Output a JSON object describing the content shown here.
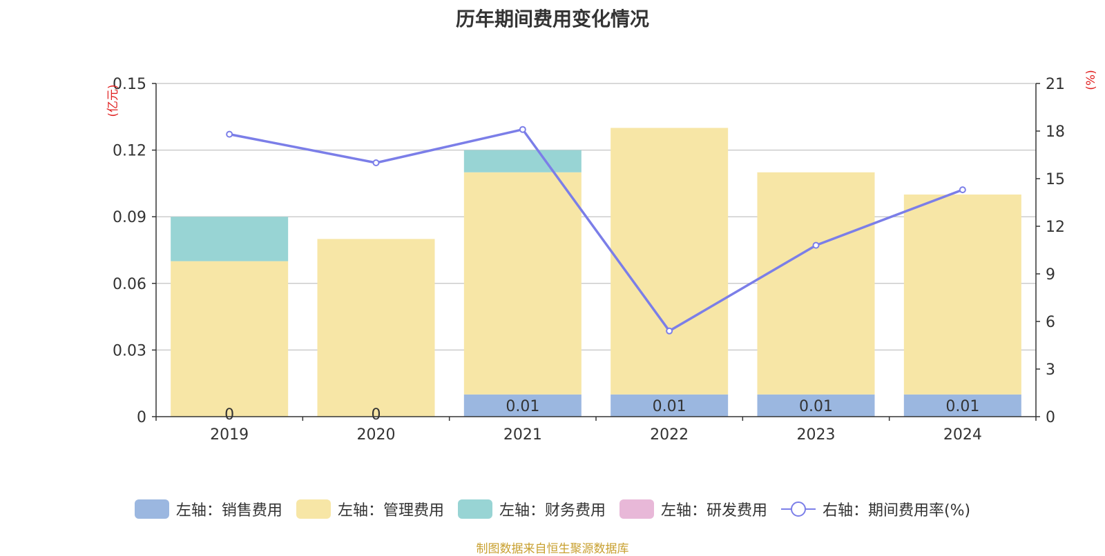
{
  "chart_data": {
    "title": "历年期间费用变化情况",
    "source": "制图数据来自恒生聚源数据库",
    "categories": [
      "2019",
      "2020",
      "2021",
      "2022",
      "2023",
      "2024"
    ],
    "left_axis": {
      "unit": "(亿元)",
      "ylim": [
        0,
        0.15
      ],
      "ticks": [
        "0",
        "0.03",
        "0.06",
        "0.09",
        "0.12",
        "0.15"
      ]
    },
    "right_axis": {
      "unit": "(%)",
      "ylim": [
        0,
        21
      ],
      "ticks": [
        "0",
        "3",
        "6",
        "9",
        "12",
        "15",
        "18",
        "21"
      ]
    },
    "series": [
      {
        "name": "左轴：销售费用",
        "type": "bar",
        "axis": "left",
        "color": "#9bb7e0",
        "values": [
          0,
          0,
          0.01,
          0.01,
          0.01,
          0.01
        ],
        "labels": [
          "0",
          "0",
          "0.01",
          "0.01",
          "0.01",
          "0.01"
        ]
      },
      {
        "name": "左轴：管理费用",
        "type": "bar",
        "axis": "left",
        "color": "#f7e6a6",
        "values": [
          0.07,
          0.08,
          0.1,
          0.12,
          0.1,
          0.09
        ]
      },
      {
        "name": "左轴：财务费用",
        "type": "bar",
        "axis": "left",
        "color": "#98d4d4",
        "values": [
          0.02,
          0,
          0.01,
          0,
          0,
          0
        ]
      },
      {
        "name": "左轴：研发费用",
        "type": "bar",
        "axis": "left",
        "color": "#e8b8d8",
        "values": [
          0,
          0,
          0,
          0,
          0,
          0
        ]
      },
      {
        "name": "右轴：期间费用率(%)",
        "type": "line",
        "axis": "right",
        "color": "#7b7ee8",
        "values": [
          17.8,
          16.0,
          18.1,
          5.4,
          10.8,
          14.3
        ]
      }
    ],
    "grid": true,
    "legend_position": "bottom"
  }
}
